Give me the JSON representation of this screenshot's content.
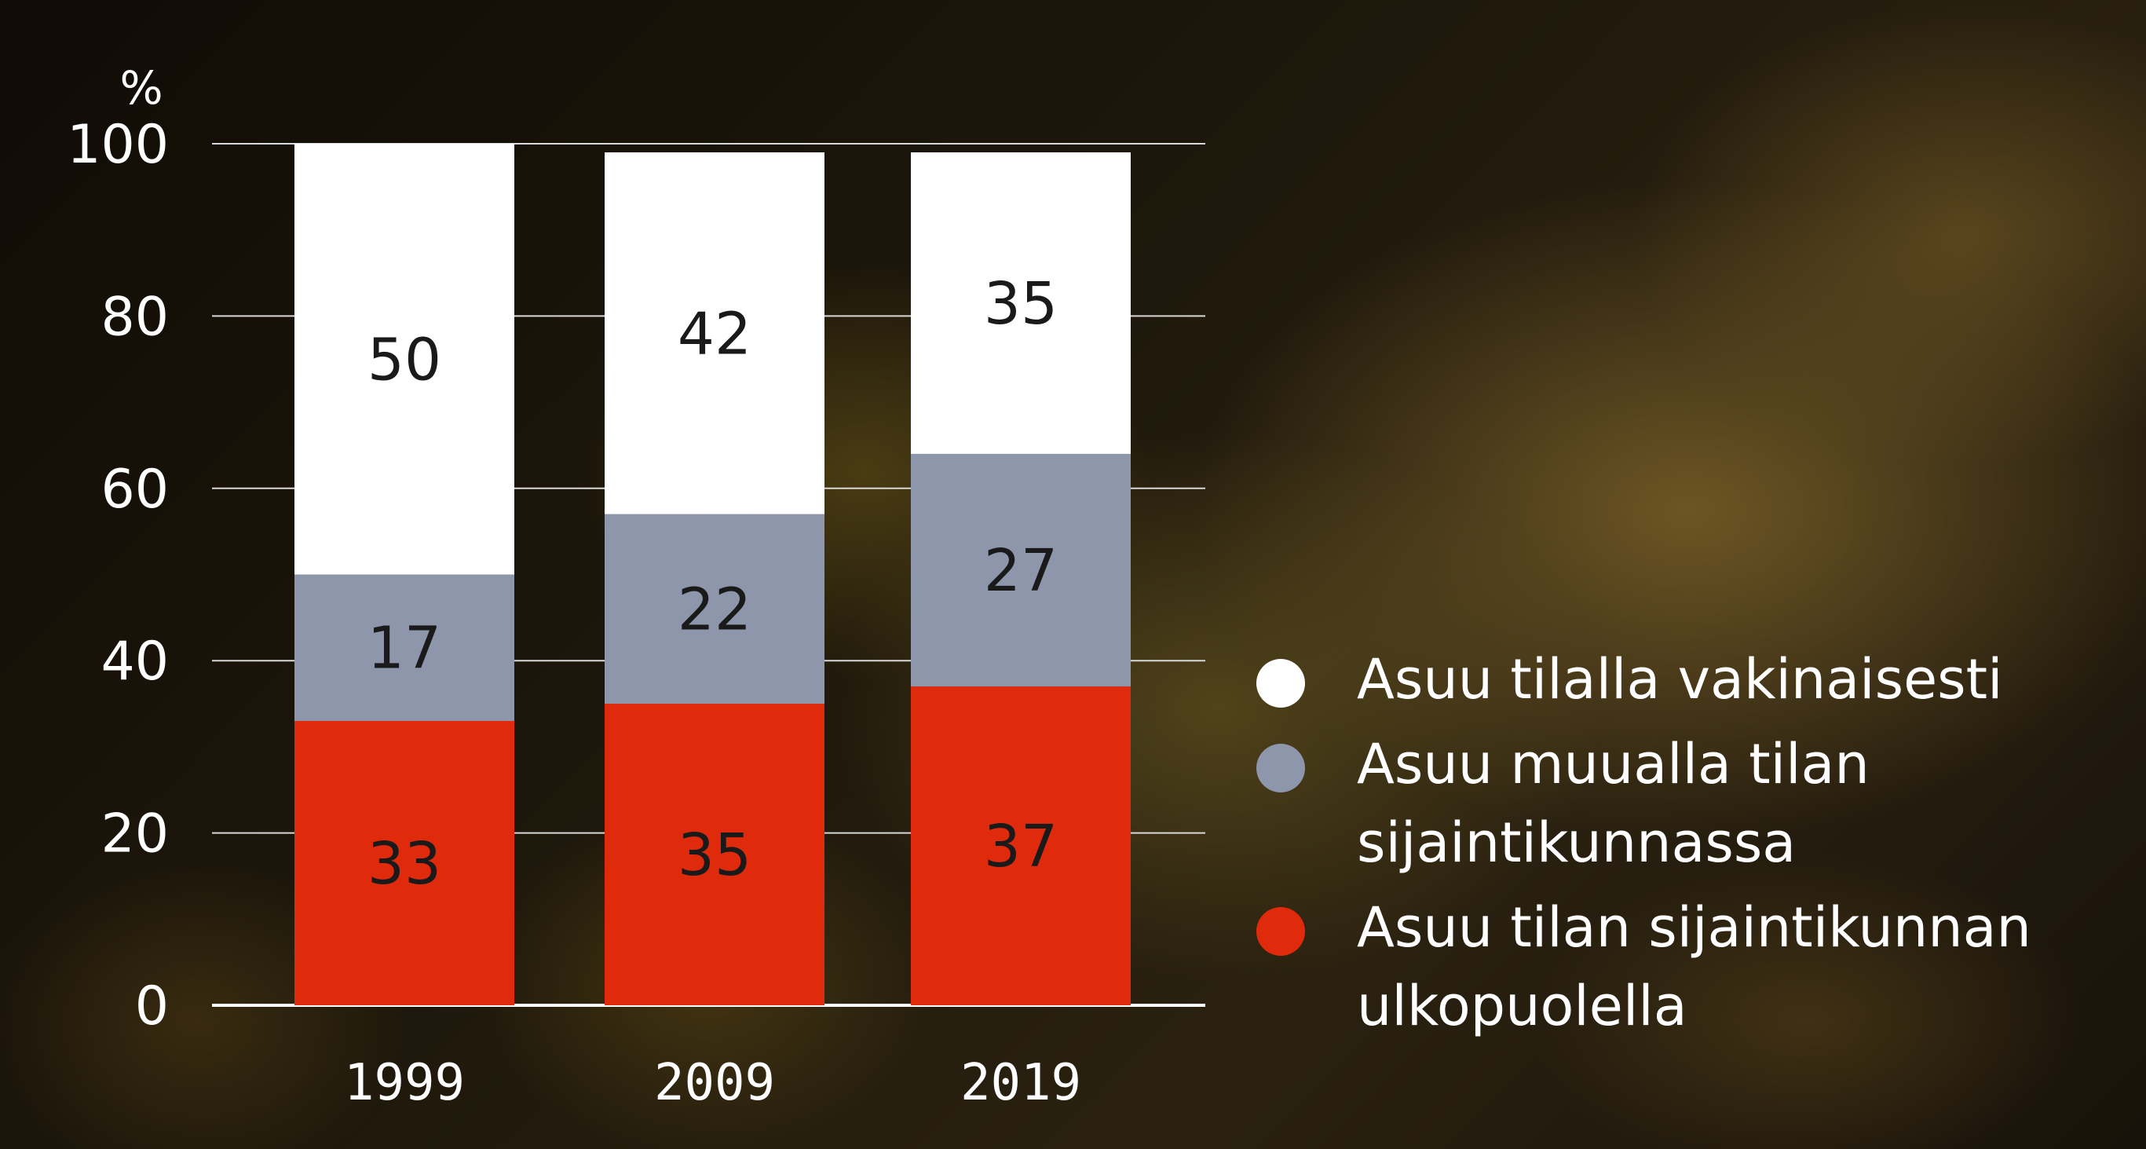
{
  "chart_data": {
    "type": "bar",
    "stacked": true,
    "unit": "%",
    "ylim": [
      0,
      100
    ],
    "yticks": [
      0,
      20,
      40,
      60,
      80,
      100
    ],
    "categories": [
      "1999",
      "2009",
      "2019"
    ],
    "series": [
      {
        "name": "Asuu tilan sijaintikunnan ulkopuolella",
        "color": "#e02a0c",
        "values": [
          33,
          35,
          37
        ]
      },
      {
        "name": "Asuu muualla tilan sijaintikunnassa",
        "color": "#8d96aa",
        "values": [
          17,
          22,
          27
        ]
      },
      {
        "name": "Asuu tilalla vakinaisesti",
        "color": "#ffffff",
        "values": [
          50,
          42,
          35
        ]
      }
    ],
    "grid": true,
    "legend": "right"
  },
  "legend": {
    "items": [
      {
        "label": "Asuu tilalla vakinaisesti",
        "color": "#ffffff"
      },
      {
        "label": "Asuu muualla tilan sijaintikunnassa",
        "color": "#8d96aa"
      },
      {
        "label": "Asuu tilan sijaintikunnan ulkopuolella",
        "color": "#e02a0c"
      }
    ]
  }
}
